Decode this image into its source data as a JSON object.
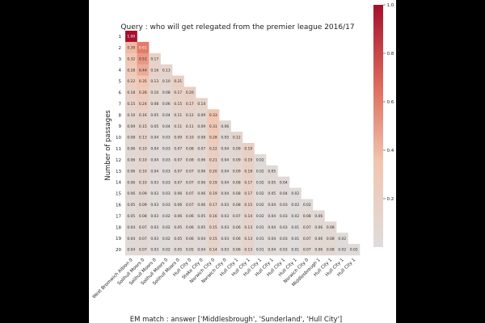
{
  "chart_data": {
    "type": "heatmap",
    "title": "Query : who will get relegated from the premier league 2016/17",
    "xlabel": "EM match : answer ['Middlesbrough', 'Sunderland', 'Hull City']",
    "ylabel": "Number of passages",
    "row_labels": [
      "1",
      "2",
      "3",
      "4",
      "5",
      "6",
      "7",
      "8",
      "9",
      "10",
      "11",
      "12",
      "13",
      "14",
      "15",
      "16",
      "17",
      "18",
      "19",
      "20"
    ],
    "col_labels": [
      "West Bromwich Albion 0",
      "Solihull Moors 0",
      "Solihull Moors 0",
      "Solihull Moors 0",
      "Solihull Moors 0",
      "Hull City 0",
      "Stoke City 0",
      "Norwich City 0",
      "Norwich City 0",
      "Hull City 1",
      "Hull City 1",
      "Hull City 1",
      "Hull City 1",
      "Hull City 1",
      "Hull City 1",
      "Norwich City 0",
      "Middlesbrough 1",
      "Hull City 1",
      "Hull City 1",
      "Hull City 1"
    ],
    "values": [
      [
        "1.00"
      ],
      [
        "0.39",
        "0.61"
      ],
      [
        "0.32",
        "0.51",
        "0.17"
      ],
      [
        "0.28",
        "0.44",
        "0.16",
        "0.13"
      ],
      [
        "0.22",
        "0.35",
        "0.13",
        "0.10",
        "0.21"
      ],
      [
        "0.18",
        "0.28",
        "0.10",
        "0.08",
        "0.17",
        "0.20"
      ],
      [
        "0.15",
        "0.24",
        "0.08",
        "0.06",
        "0.15",
        "0.17",
        "0.14"
      ],
      [
        "0.10",
        "0.16",
        "0.05",
        "0.04",
        "0.11",
        "0.12",
        "0.09",
        "0.33"
      ],
      [
        "0.09",
        "0.15",
        "0.05",
        "0.04",
        "0.11",
        "0.11",
        "0.09",
        "0.31",
        "0.06"
      ],
      [
        "0.08",
        "0.13",
        "0.04",
        "0.03",
        "0.09",
        "0.10",
        "0.08",
        "0.28",
        "0.05",
        "0.12"
      ],
      [
        "0.06",
        "0.10",
        "0.04",
        "0.03",
        "0.07",
        "0.08",
        "0.07",
        "0.22",
        "0.04",
        "0.09",
        "0.19"
      ],
      [
        "0.06",
        "0.10",
        "0.04",
        "0.03",
        "0.07",
        "0.08",
        "0.06",
        "0.21",
        "0.04",
        "0.09",
        "0.19",
        "0.02"
      ],
      [
        "0.06",
        "0.10",
        "0.04",
        "0.03",
        "0.07",
        "0.07",
        "0.06",
        "0.20",
        "0.04",
        "0.09",
        "0.18",
        "0.02",
        "0.05"
      ],
      [
        "0.06",
        "0.10",
        "0.03",
        "0.03",
        "0.07",
        "0.07",
        "0.06",
        "0.19",
        "0.04",
        "0.08",
        "0.17",
        "0.02",
        "0.05",
        "0.04"
      ],
      [
        "0.06",
        "0.09",
        "0.03",
        "0.03",
        "0.06",
        "0.07",
        "0.06",
        "0.19",
        "0.04",
        "0.08",
        "0.17",
        "0.02",
        "0.05",
        "0.04",
        "0.02"
      ],
      [
        "0.05",
        "0.09",
        "0.03",
        "0.03",
        "0.06",
        "0.07",
        "0.06",
        "0.17",
        "0.03",
        "0.08",
        "0.15",
        "0.02",
        "0.04",
        "0.03",
        "0.02",
        "0.02"
      ],
      [
        "0.05",
        "0.08",
        "0.03",
        "0.02",
        "0.06",
        "0.06",
        "0.05",
        "0.16",
        "0.03",
        "0.07",
        "0.14",
        "0.02",
        "0.04",
        "0.03",
        "0.02",
        "0.08",
        "0.06"
      ],
      [
        "0.04",
        "0.07",
        "0.03",
        "0.02",
        "0.05",
        "0.06",
        "0.05",
        "0.15",
        "0.03",
        "0.06",
        "0.13",
        "0.01",
        "0.04",
        "0.03",
        "0.01",
        "0.07",
        "0.06",
        "0.08"
      ],
      [
        "0.04",
        "0.07",
        "0.03",
        "0.02",
        "0.05",
        "0.06",
        "0.04",
        "0.15",
        "0.03",
        "0.06",
        "0.13",
        "0.01",
        "0.04",
        "0.03",
        "0.01",
        "0.07",
        "0.06",
        "0.08",
        "0.02"
      ],
      [
        "0.04",
        "0.07",
        "0.03",
        "0.02",
        "0.05",
        "0.05",
        "0.04",
        "0.14",
        "0.03",
        "0.06",
        "0.13",
        "0.01",
        "0.04",
        "0.03",
        "0.01",
        "0.07",
        "0.06",
        "0.08",
        "0.02",
        "0.02"
      ]
    ],
    "colorbar": {
      "min": 0.0,
      "max": 1.0,
      "ticks": [
        "1.0",
        "0.8",
        "0.6",
        "0.4",
        "0.2"
      ]
    },
    "colors": {
      "low": "#dedcdc",
      "mid": "#f2c5b0",
      "high": "#a5102c"
    },
    "grid": false
  }
}
